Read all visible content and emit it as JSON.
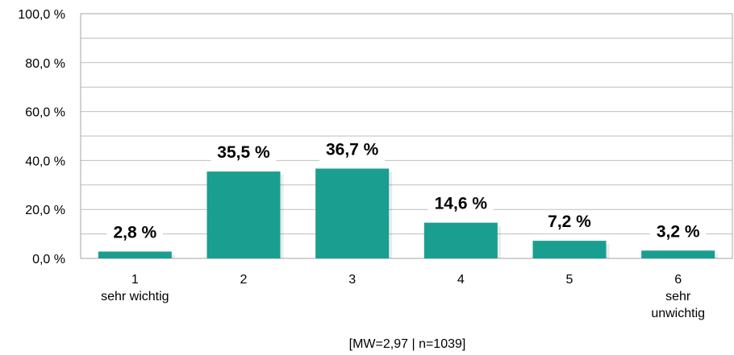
{
  "chart_data": {
    "type": "bar",
    "categories": [
      [
        "1",
        "sehr wichtig"
      ],
      [
        "2"
      ],
      [
        "3"
      ],
      [
        "4"
      ],
      [
        "5"
      ],
      [
        "6",
        "sehr",
        "unwichtig"
      ]
    ],
    "values": [
      2.8,
      35.5,
      36.7,
      14.6,
      7.2,
      3.2
    ],
    "data_labels": [
      "2,8 %",
      "35,5 %",
      "36,7 %",
      "14,6 %",
      "7,2 %",
      "3,2 %"
    ],
    "y_ticks": [
      "0,0 %",
      "20,0 %",
      "40,0 %",
      "60,0 %",
      "80,0 %",
      "100,0 %"
    ],
    "ylim": [
      0,
      100
    ],
    "grid": true,
    "legend": "none",
    "bar_color": "#1a9e8f",
    "note": "[MW=2,97 | n=1039]"
  }
}
